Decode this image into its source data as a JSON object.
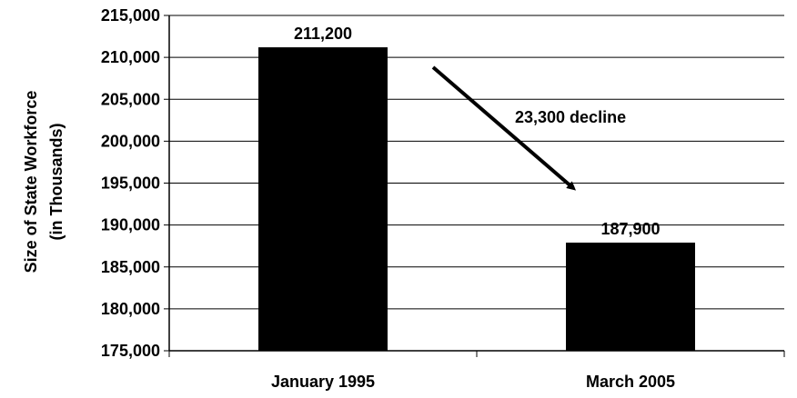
{
  "chart_data": {
    "type": "bar",
    "categories": [
      "January 1995",
      "March 2005"
    ],
    "values": [
      211200,
      187900
    ],
    "data_labels": [
      "211,200",
      "187,900"
    ],
    "ylabel_line1": "Size of State Workforce",
    "ylabel_line2": "(in Thousands)",
    "ylim": [
      175000,
      215000
    ],
    "y_ticks": [
      175000,
      180000,
      185000,
      190000,
      195000,
      200000,
      205000,
      210000,
      215000
    ],
    "y_tick_labels": [
      "175,000",
      "180,000",
      "185,000",
      "190,000",
      "195,000",
      "200,000",
      "205,000",
      "210,000",
      "215,000"
    ],
    "grid": true,
    "annotation": "23,300 decline",
    "bar_color": "#000000"
  }
}
